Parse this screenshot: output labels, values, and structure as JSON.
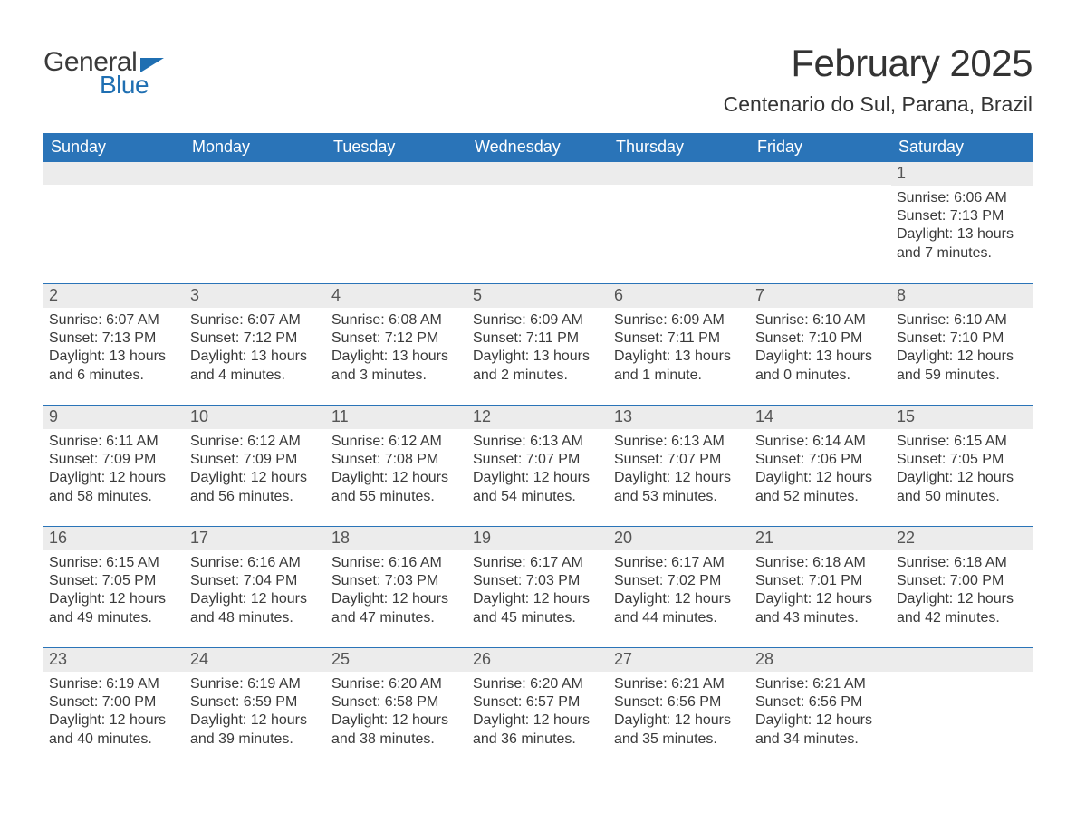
{
  "logo": {
    "part1": "General",
    "part2": "Blue"
  },
  "colors": {
    "header_bg": "#2a74b8",
    "header_text": "#ffffff",
    "band_bg": "#ececec",
    "rule": "#2a74b8",
    "text": "#333333",
    "logo_blue": "#1f6fb2"
  },
  "title": "February 2025",
  "subtitle": "Centenario do Sul, Parana, Brazil",
  "weekdays": [
    "Sunday",
    "Monday",
    "Tuesday",
    "Wednesday",
    "Thursday",
    "Friday",
    "Saturday"
  ],
  "weeks": [
    [
      null,
      null,
      null,
      null,
      null,
      null,
      {
        "n": "1",
        "sunrise": "Sunrise: 6:06 AM",
        "sunset": "Sunset: 7:13 PM",
        "daylight": "Daylight: 13 hours and 7 minutes."
      }
    ],
    [
      {
        "n": "2",
        "sunrise": "Sunrise: 6:07 AM",
        "sunset": "Sunset: 7:13 PM",
        "daylight": "Daylight: 13 hours and 6 minutes."
      },
      {
        "n": "3",
        "sunrise": "Sunrise: 6:07 AM",
        "sunset": "Sunset: 7:12 PM",
        "daylight": "Daylight: 13 hours and 4 minutes."
      },
      {
        "n": "4",
        "sunrise": "Sunrise: 6:08 AM",
        "sunset": "Sunset: 7:12 PM",
        "daylight": "Daylight: 13 hours and 3 minutes."
      },
      {
        "n": "5",
        "sunrise": "Sunrise: 6:09 AM",
        "sunset": "Sunset: 7:11 PM",
        "daylight": "Daylight: 13 hours and 2 minutes."
      },
      {
        "n": "6",
        "sunrise": "Sunrise: 6:09 AM",
        "sunset": "Sunset: 7:11 PM",
        "daylight": "Daylight: 13 hours and 1 minute."
      },
      {
        "n": "7",
        "sunrise": "Sunrise: 6:10 AM",
        "sunset": "Sunset: 7:10 PM",
        "daylight": "Daylight: 13 hours and 0 minutes."
      },
      {
        "n": "8",
        "sunrise": "Sunrise: 6:10 AM",
        "sunset": "Sunset: 7:10 PM",
        "daylight": "Daylight: 12 hours and 59 minutes."
      }
    ],
    [
      {
        "n": "9",
        "sunrise": "Sunrise: 6:11 AM",
        "sunset": "Sunset: 7:09 PM",
        "daylight": "Daylight: 12 hours and 58 minutes."
      },
      {
        "n": "10",
        "sunrise": "Sunrise: 6:12 AM",
        "sunset": "Sunset: 7:09 PM",
        "daylight": "Daylight: 12 hours and 56 minutes."
      },
      {
        "n": "11",
        "sunrise": "Sunrise: 6:12 AM",
        "sunset": "Sunset: 7:08 PM",
        "daylight": "Daylight: 12 hours and 55 minutes."
      },
      {
        "n": "12",
        "sunrise": "Sunrise: 6:13 AM",
        "sunset": "Sunset: 7:07 PM",
        "daylight": "Daylight: 12 hours and 54 minutes."
      },
      {
        "n": "13",
        "sunrise": "Sunrise: 6:13 AM",
        "sunset": "Sunset: 7:07 PM",
        "daylight": "Daylight: 12 hours and 53 minutes."
      },
      {
        "n": "14",
        "sunrise": "Sunrise: 6:14 AM",
        "sunset": "Sunset: 7:06 PM",
        "daylight": "Daylight: 12 hours and 52 minutes."
      },
      {
        "n": "15",
        "sunrise": "Sunrise: 6:15 AM",
        "sunset": "Sunset: 7:05 PM",
        "daylight": "Daylight: 12 hours and 50 minutes."
      }
    ],
    [
      {
        "n": "16",
        "sunrise": "Sunrise: 6:15 AM",
        "sunset": "Sunset: 7:05 PM",
        "daylight": "Daylight: 12 hours and 49 minutes."
      },
      {
        "n": "17",
        "sunrise": "Sunrise: 6:16 AM",
        "sunset": "Sunset: 7:04 PM",
        "daylight": "Daylight: 12 hours and 48 minutes."
      },
      {
        "n": "18",
        "sunrise": "Sunrise: 6:16 AM",
        "sunset": "Sunset: 7:03 PM",
        "daylight": "Daylight: 12 hours and 47 minutes."
      },
      {
        "n": "19",
        "sunrise": "Sunrise: 6:17 AM",
        "sunset": "Sunset: 7:03 PM",
        "daylight": "Daylight: 12 hours and 45 minutes."
      },
      {
        "n": "20",
        "sunrise": "Sunrise: 6:17 AM",
        "sunset": "Sunset: 7:02 PM",
        "daylight": "Daylight: 12 hours and 44 minutes."
      },
      {
        "n": "21",
        "sunrise": "Sunrise: 6:18 AM",
        "sunset": "Sunset: 7:01 PM",
        "daylight": "Daylight: 12 hours and 43 minutes."
      },
      {
        "n": "22",
        "sunrise": "Sunrise: 6:18 AM",
        "sunset": "Sunset: 7:00 PM",
        "daylight": "Daylight: 12 hours and 42 minutes."
      }
    ],
    [
      {
        "n": "23",
        "sunrise": "Sunrise: 6:19 AM",
        "sunset": "Sunset: 7:00 PM",
        "daylight": "Daylight: 12 hours and 40 minutes."
      },
      {
        "n": "24",
        "sunrise": "Sunrise: 6:19 AM",
        "sunset": "Sunset: 6:59 PM",
        "daylight": "Daylight: 12 hours and 39 minutes."
      },
      {
        "n": "25",
        "sunrise": "Sunrise: 6:20 AM",
        "sunset": "Sunset: 6:58 PM",
        "daylight": "Daylight: 12 hours and 38 minutes."
      },
      {
        "n": "26",
        "sunrise": "Sunrise: 6:20 AM",
        "sunset": "Sunset: 6:57 PM",
        "daylight": "Daylight: 12 hours and 36 minutes."
      },
      {
        "n": "27",
        "sunrise": "Sunrise: 6:21 AM",
        "sunset": "Sunset: 6:56 PM",
        "daylight": "Daylight: 12 hours and 35 minutes."
      },
      {
        "n": "28",
        "sunrise": "Sunrise: 6:21 AM",
        "sunset": "Sunset: 6:56 PM",
        "daylight": "Daylight: 12 hours and 34 minutes."
      },
      null
    ]
  ]
}
